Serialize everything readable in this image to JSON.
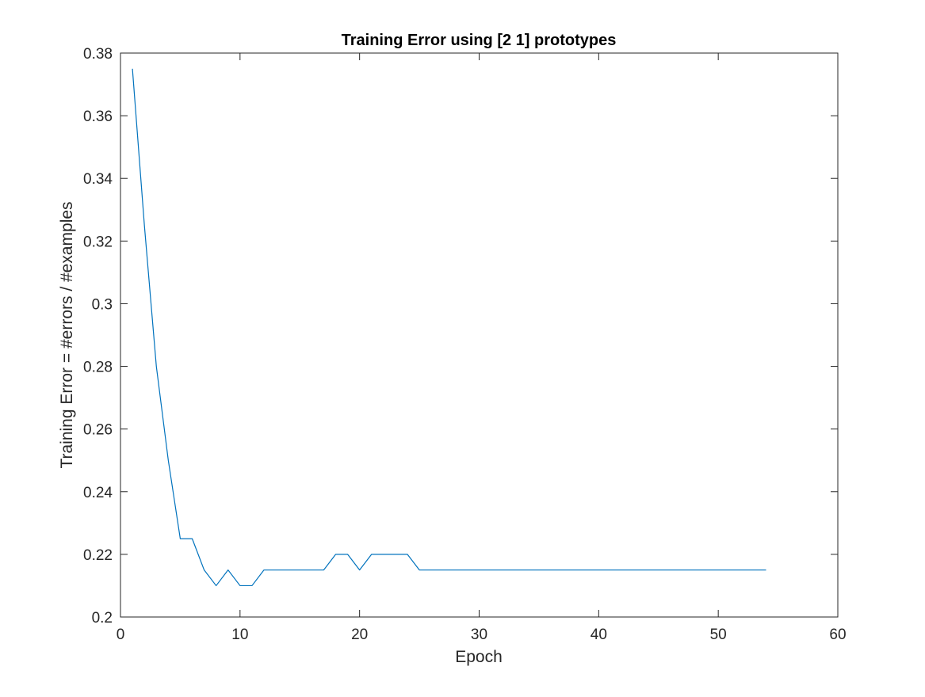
{
  "chart_data": {
    "type": "line",
    "title": "Training Error using [2 1] prototypes",
    "xlabel": "Epoch",
    "ylabel": "Training Error = #errors / #examples",
    "xlim": [
      0,
      60
    ],
    "ylim": [
      0.2,
      0.38
    ],
    "xticks": [
      0,
      10,
      20,
      30,
      40,
      50,
      60
    ],
    "xtick_labels": [
      "0",
      "10",
      "20",
      "30",
      "40",
      "50",
      "60"
    ],
    "yticks": [
      0.2,
      0.22,
      0.24,
      0.26,
      0.28,
      0.3,
      0.32,
      0.34,
      0.36,
      0.38
    ],
    "ytick_labels": [
      "0.2",
      "0.22",
      "0.24",
      "0.26",
      "0.28",
      "0.3",
      "0.32",
      "0.34",
      "0.36",
      "0.38"
    ],
    "grid": false,
    "box": true,
    "line_color": "#0072BD",
    "axis_color": "#262626",
    "series": [
      {
        "x": [
          1,
          2,
          3,
          4,
          5,
          6,
          7,
          8,
          9,
          10,
          11,
          12,
          13,
          14,
          15,
          16,
          17,
          18,
          19,
          20,
          21,
          22,
          23,
          24,
          25,
          26,
          27,
          28,
          29,
          30,
          31,
          32,
          33,
          34,
          35,
          36,
          37,
          38,
          39,
          40,
          41,
          42,
          43,
          44,
          45,
          46,
          47,
          48,
          49,
          50,
          51,
          52,
          53,
          54
        ],
        "y": [
          0.375,
          0.325,
          0.28,
          0.25,
          0.225,
          0.225,
          0.215,
          0.21,
          0.215,
          0.21,
          0.21,
          0.215,
          0.215,
          0.215,
          0.215,
          0.215,
          0.215,
          0.22,
          0.22,
          0.215,
          0.22,
          0.22,
          0.22,
          0.22,
          0.215,
          0.215,
          0.215,
          0.215,
          0.215,
          0.215,
          0.215,
          0.215,
          0.215,
          0.215,
          0.215,
          0.215,
          0.215,
          0.215,
          0.215,
          0.215,
          0.215,
          0.215,
          0.215,
          0.215,
          0.215,
          0.215,
          0.215,
          0.215,
          0.215,
          0.215,
          0.215,
          0.215,
          0.215,
          0.215
        ]
      }
    ]
  }
}
